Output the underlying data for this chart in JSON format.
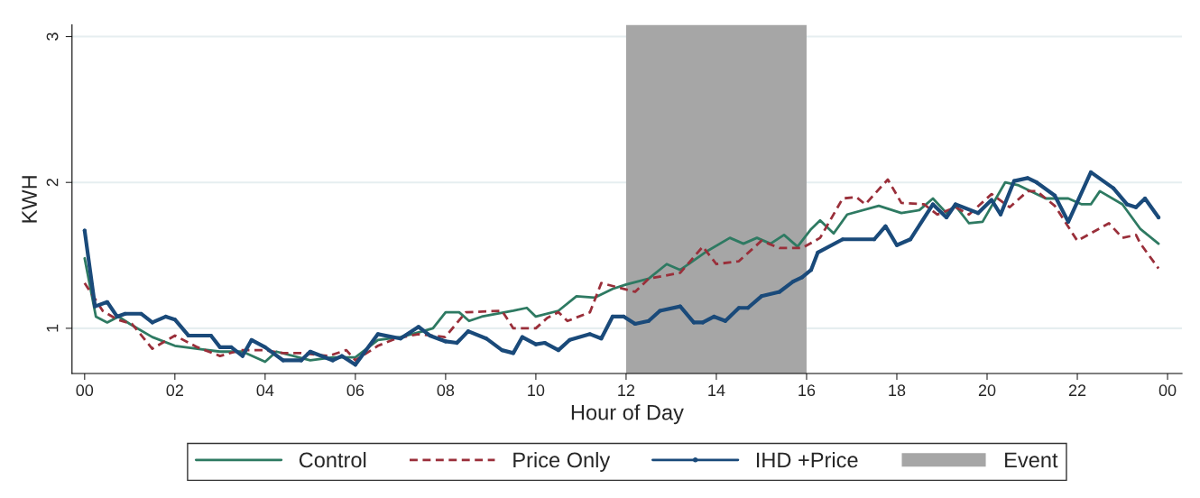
{
  "chart_data": {
    "type": "line",
    "xlabel": "Hour of Day",
    "ylabel": "KWH",
    "xlim": [
      -0.28,
      24.32
    ],
    "ylim": [
      0.69,
      3.08
    ],
    "xticks": [
      {
        "value": 0,
        "label": "00"
      },
      {
        "value": 2,
        "label": "02"
      },
      {
        "value": 4,
        "label": "04"
      },
      {
        "value": 6,
        "label": "06"
      },
      {
        "value": 8,
        "label": "08"
      },
      {
        "value": 10,
        "label": "10"
      },
      {
        "value": 12,
        "label": "12"
      },
      {
        "value": 14,
        "label": "14"
      },
      {
        "value": 16,
        "label": "16"
      },
      {
        "value": 18,
        "label": "18"
      },
      {
        "value": 20,
        "label": "20"
      },
      {
        "value": 22,
        "label": "22"
      },
      {
        "value": 24,
        "label": "00"
      }
    ],
    "yticks": [
      1,
      2,
      3
    ],
    "grid": "y",
    "legend": "bottom",
    "bands": [
      {
        "axis": "x",
        "from": 12,
        "to": 16,
        "label": "Event",
        "color": "#a6a6a6"
      }
    ],
    "series": [
      {
        "name": "Control",
        "color": "#2e7a62",
        "line_style": "solid",
        "marker": "none",
        "x": [
          0,
          0.25,
          0.5,
          0.75,
          1,
          1.5,
          2,
          2.5,
          3,
          3.5,
          4,
          4.25,
          5,
          5.5,
          6,
          6.5,
          7,
          7.5,
          7.72,
          8,
          8.3,
          8.52,
          8.8,
          9.5,
          9.8,
          10,
          10.5,
          10.9,
          11.3,
          11.7,
          12,
          12.5,
          12.9,
          13.2,
          13.8,
          14.3,
          14.6,
          14.9,
          15.2,
          15.5,
          15.8,
          16.1,
          16.3,
          16.6,
          16.9,
          17.6,
          18.1,
          18.5,
          18.8,
          19.1,
          19.3,
          19.6,
          19.9,
          20.4,
          20.7,
          21.3,
          21.8,
          22.1,
          22.3,
          22.5,
          23.0,
          23.4,
          23.8
        ],
        "values": [
          1.48,
          1.08,
          1.04,
          1.08,
          1.03,
          0.94,
          0.88,
          0.86,
          0.84,
          0.84,
          0.77,
          0.84,
          0.78,
          0.8,
          0.8,
          0.92,
          0.94,
          0.98,
          1.0,
          1.11,
          1.11,
          1.05,
          1.08,
          1.12,
          1.14,
          1.08,
          1.12,
          1.22,
          1.21,
          1.27,
          1.3,
          1.34,
          1.44,
          1.4,
          1.53,
          1.62,
          1.58,
          1.62,
          1.58,
          1.64,
          1.56,
          1.68,
          1.74,
          1.65,
          1.78,
          1.84,
          1.79,
          1.81,
          1.89,
          1.79,
          1.84,
          1.72,
          1.73,
          2.0,
          1.98,
          1.89,
          1.89,
          1.85,
          1.85,
          1.94,
          1.85,
          1.68,
          1.58
        ]
      },
      {
        "name": "Price Only",
        "color": "#9a2f3a",
        "line_style": "dashed",
        "marker": "none",
        "x": [
          0,
          0.4,
          0.72,
          1.05,
          1.5,
          2,
          2.5,
          3,
          3.45,
          3.98,
          4.4,
          4.8,
          5.4,
          5.8,
          6,
          6.5,
          6.9,
          7.4,
          7.99,
          8.45,
          9.25,
          9.5,
          10,
          10.25,
          10.5,
          10.7,
          11.2,
          11.45,
          12.2,
          12.5,
          13.2,
          13.7,
          14,
          14.5,
          15,
          15.4,
          15.9,
          16.3,
          16.8,
          17.1,
          17.3,
          17.8,
          18.1,
          18.6,
          18.9,
          19.3,
          19.6,
          20.1,
          20.5,
          20.9,
          21.1,
          21.5,
          22,
          22.7,
          23,
          23.3,
          23.4,
          23.8
        ],
        "values": [
          1.31,
          1.12,
          1.06,
          1.03,
          0.86,
          0.95,
          0.87,
          0.81,
          0.85,
          0.85,
          0.83,
          0.83,
          0.81,
          0.85,
          0.78,
          0.88,
          0.93,
          0.96,
          0.94,
          1.11,
          1.12,
          1.0,
          1.0,
          1.07,
          1.11,
          1.05,
          1.11,
          1.31,
          1.25,
          1.34,
          1.38,
          1.56,
          1.44,
          1.46,
          1.6,
          1.55,
          1.55,
          1.62,
          1.89,
          1.9,
          1.85,
          2.02,
          1.86,
          1.85,
          1.78,
          1.83,
          1.78,
          1.92,
          1.83,
          1.94,
          1.94,
          1.84,
          1.6,
          1.72,
          1.62,
          1.64,
          1.58,
          1.41
        ]
      },
      {
        "name": "IHD +Price",
        "color": "#1a4a7a",
        "line_style": "solid",
        "marker": "circle",
        "x": [
          0,
          0.23,
          0.5,
          0.72,
          0.9,
          1.25,
          1.5,
          1.8,
          2,
          2.3,
          2.8,
          3,
          3.25,
          3.5,
          3.7,
          4,
          4.4,
          4.8,
          5,
          5.5,
          5.7,
          6,
          6.5,
          7,
          7.4,
          7.65,
          8,
          8.25,
          8.5,
          8.9,
          9.25,
          9.5,
          9.7,
          10,
          10.2,
          10.5,
          10.75,
          11.2,
          11.45,
          11.7,
          11.95,
          12.2,
          12.5,
          12.75,
          13.2,
          13.5,
          13.7,
          13.95,
          14.2,
          14.5,
          14.7,
          15,
          15.4,
          15.7,
          15.9,
          16.1,
          16.25,
          16.8,
          17.5,
          17.75,
          18,
          18.3,
          18.8,
          19.1,
          19.3,
          19.8,
          20.1,
          20.3,
          20.6,
          20.9,
          21.1,
          21.5,
          21.8,
          22.3,
          22.8,
          23.1,
          23.3,
          23.5,
          23.8
        ],
        "values": [
          1.67,
          1.15,
          1.18,
          1.08,
          1.1,
          1.1,
          1.04,
          1.08,
          1.06,
          0.95,
          0.95,
          0.87,
          0.87,
          0.81,
          0.92,
          0.87,
          0.78,
          0.78,
          0.84,
          0.78,
          0.81,
          0.75,
          0.96,
          0.93,
          1.01,
          0.95,
          0.91,
          0.9,
          0.98,
          0.93,
          0.85,
          0.83,
          0.94,
          0.89,
          0.9,
          0.85,
          0.92,
          0.96,
          0.93,
          1.08,
          1.08,
          1.03,
          1.05,
          1.12,
          1.15,
          1.04,
          1.04,
          1.08,
          1.05,
          1.14,
          1.14,
          1.22,
          1.25,
          1.32,
          1.35,
          1.4,
          1.52,
          1.61,
          1.61,
          1.7,
          1.57,
          1.61,
          1.85,
          1.76,
          1.85,
          1.79,
          1.88,
          1.78,
          2.01,
          2.03,
          2.0,
          1.91,
          1.73,
          2.07,
          1.96,
          1.85,
          1.83,
          1.89,
          1.76
        ]
      }
    ]
  }
}
